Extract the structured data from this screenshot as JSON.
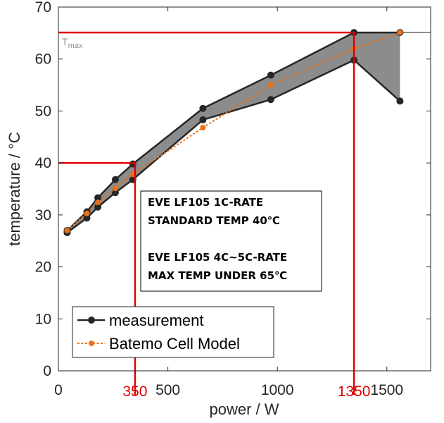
{
  "chart_data": {
    "type": "line",
    "xlabel": "power / W",
    "ylabel": "temperature / °C",
    "xlim": [
      0,
      1700
    ],
    "ylim": [
      0,
      70
    ],
    "x_ticks": [
      0,
      500,
      1000,
      1500
    ],
    "y_ticks": [
      0,
      10,
      20,
      30,
      40,
      50,
      60,
      70
    ],
    "grid": false,
    "legend_position": "bottom-left",
    "series": [
      {
        "name": "measurement",
        "kind": "measurement-upper",
        "color": "#262626",
        "x": [
          40,
          130,
          180,
          260,
          340,
          660,
          970,
          1350,
          1560
        ],
        "y": [
          27,
          30.6,
          33.3,
          36.8,
          39.8,
          50.5,
          56.9,
          65.1,
          65.1
        ]
      },
      {
        "name": "",
        "kind": "measurement-lower",
        "color": "#262626",
        "x": [
          40,
          130,
          180,
          260,
          340,
          660,
          970,
          1350,
          1560
        ],
        "y": [
          26.6,
          29.4,
          31.5,
          34.3,
          36.8,
          48.3,
          52.2,
          59.8,
          51.9
        ]
      },
      {
        "name": "Batemo Cell Model",
        "kind": "model",
        "color": "#e8711a",
        "x": [
          40,
          130,
          180,
          260,
          340,
          660,
          970,
          1350,
          1560
        ],
        "y": [
          27,
          30.3,
          32.4,
          35.1,
          37.8,
          46.8,
          55,
          62,
          65.1
        ]
      }
    ],
    "tmax": {
      "label": "T",
      "subscript": "max",
      "value": 65.1
    },
    "reference_lines": {
      "color": "#e00000",
      "points": [
        {
          "x": 350,
          "y": 40,
          "label": "350"
        },
        {
          "x": 1350,
          "y": 65.1,
          "label": "1350"
        }
      ]
    },
    "annotation": {
      "lines": [
        "EVE LF105 1C-RATE",
        "STANDARD TEMP 40℃",
        "",
        "EVE LF105 4C~5C-RATE",
        "MAX TEMP UNDER 65℃"
      ]
    },
    "band_color": "#8c8c8c"
  }
}
